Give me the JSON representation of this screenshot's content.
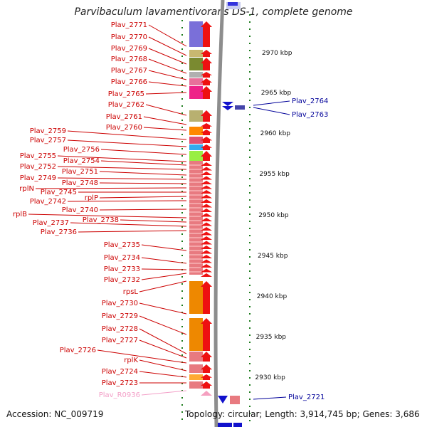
{
  "title": "Parvibaculum lavamentivorans DS-1, complete genome",
  "accession_label": "Accession: NC_009719",
  "summary_label": "Topology: circular; Length: 3,914,745 bp; Genes: 3,686",
  "colors": {
    "gene_arrow": "#ee1111",
    "gene_arrow_minus": "#1111cc",
    "label_red": "#cc0000",
    "label_blue": "#000099",
    "label_pink": "#f3a0c8",
    "backbone": "#888888",
    "tick": "#1a7a1a"
  },
  "scale_labels": [
    "2970 kbp",
    "2965 kbp",
    "2960 kbp",
    "2955 kbp",
    "2950 kbp",
    "2945 kbp",
    "2940 kbp",
    "2935 kbp",
    "2930 kbp"
  ],
  "left_labels": [
    "Plav_2771",
    "Plav_2770",
    "Plav_2769",
    "Plav_2768",
    "Plav_2767",
    "Plav_2766",
    "Plav_2765",
    "Plav_2762",
    "Plav_2761",
    "Plav_2760",
    "Plav_2759",
    "Plav_2757",
    "Plav_2756",
    "Plav_2755",
    "Plav_2754",
    "Plav_2752",
    "Plav_2751",
    "Plav_2749",
    "Plav_2748",
    "rplN",
    "Plav_2745",
    "rplP",
    "Plav_2742",
    "Plav_2740",
    "rplB",
    "Plav_2738",
    "Plav_2737",
    "Plav_2736",
    "Plav_2735",
    "Plav_2734",
    "Plav_2733",
    "Plav_2732",
    "rpsL",
    "Plav_2730",
    "Plav_2729",
    "Plav_2728",
    "Plav_2727",
    "Plav_2726",
    "rplK",
    "Plav_2724",
    "Plav_2723",
    "Plav_R0936"
  ],
  "right_labels": [
    "Plav_2764",
    "Plav_2763",
    "Plav_2721"
  ]
}
